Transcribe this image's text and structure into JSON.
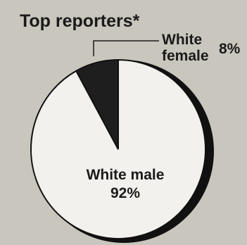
{
  "chart_data": {
    "type": "pie",
    "title": "Top reporters*",
    "slices": [
      {
        "label": "White male",
        "value": 92,
        "value_label": "92%",
        "color": "#f2f1ed"
      },
      {
        "label": "White female",
        "value": 8,
        "value_label": "8%",
        "color": "#1e1e1e"
      }
    ],
    "female_label_lines": [
      "White",
      "female"
    ],
    "background_color": "#c9c6bd"
  }
}
